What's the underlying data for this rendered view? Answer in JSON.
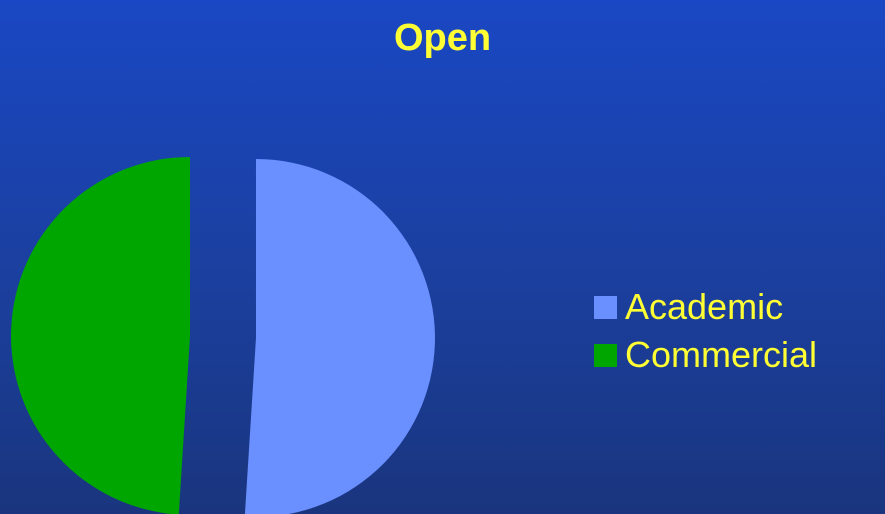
{
  "chart_data": {
    "type": "pie",
    "title": "Open",
    "categories": [
      "Academic",
      "Commercial"
    ],
    "values": [
      51,
      49
    ],
    "colors": [
      "#6a8fff",
      "#00a600"
    ],
    "exploded": true,
    "legend_position": "right"
  },
  "colors": {
    "background_top": "#1a48c4",
    "background_bottom": "#1a357e",
    "text": "#ffff33"
  }
}
